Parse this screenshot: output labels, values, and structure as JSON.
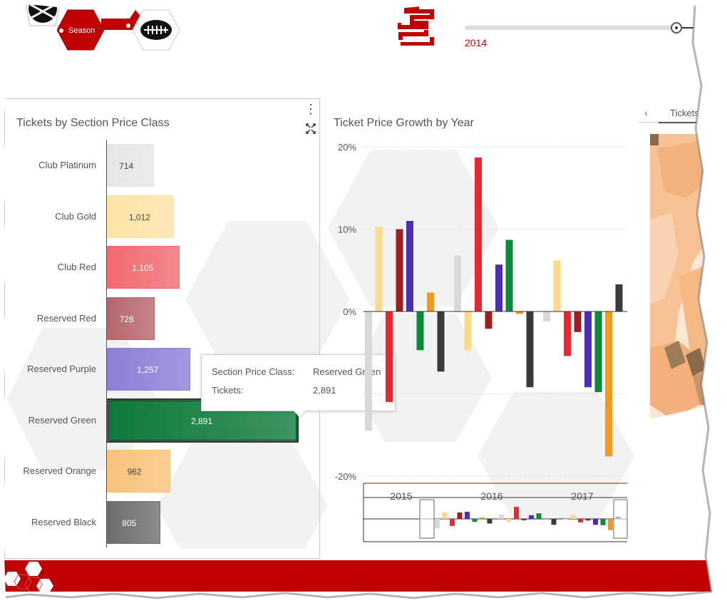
{
  "header": {
    "season_label": "Season",
    "year_slider": {
      "selected_label": "2014"
    }
  },
  "left_panel": {
    "title": "Tickets by Section Price Class",
    "menu_icon": "vertical-ellipsis-icon",
    "expand_icon": "expand-icon"
  },
  "chart_data": [
    {
      "type": "bar",
      "orientation": "horizontal",
      "title": "Tickets by Section Price Class",
      "categories": [
        "Club Platinum",
        "Club Gold",
        "Club Red",
        "Reserved Red",
        "Reserved Purple",
        "Reserved Green",
        "Reserved Orange",
        "Reserved Black"
      ],
      "values": [
        714,
        1012,
        1105,
        728,
        1257,
        2891,
        962,
        805
      ],
      "labels": [
        "714",
        "1,012",
        "1,105",
        "728",
        "1,257",
        "2,891",
        "962",
        "805"
      ],
      "colors": [
        "#e6e6e6",
        "#ffe3a6",
        "#f06a70",
        "#b6666c",
        "#8b7fd6",
        "#0e7a3a",
        "#f8c27a",
        "#6e6e6e"
      ],
      "selected": "Reserved Green"
    },
    {
      "type": "bar",
      "title": "Ticket Price Growth by Year",
      "categories": [
        "2015",
        "2016",
        "2017"
      ],
      "ytick_labels": [
        "20%",
        "10%",
        "0%",
        "-20%"
      ],
      "ylim": [
        -20,
        20
      ],
      "series": [
        {
          "color": "#d9d9d9",
          "values": [
            -14.5,
            6.8,
            -1.2
          ]
        },
        {
          "color": "#ffd98a",
          "values": [
            10.3,
            -4.7,
            6.2
          ]
        },
        {
          "color": "#e8272f",
          "values": [
            -11,
            18.7,
            -5.4
          ]
        },
        {
          "color": "#9c1f24",
          "values": [
            10,
            -2.1,
            -2.5
          ]
        },
        {
          "color": "#4b2fb0",
          "values": [
            11,
            5.7,
            -9.2
          ]
        },
        {
          "color": "#0c8a3a",
          "values": [
            -4.7,
            8.7,
            -9.8
          ]
        },
        {
          "color": "#f39a1e",
          "values": [
            2.3,
            -0.3,
            -17.6
          ]
        },
        {
          "color": "#3a3a3a",
          "values": [
            -7.3,
            -9.2,
            3.3
          ]
        }
      ]
    }
  ],
  "tooltip": {
    "row1_label": "Section Price Class:",
    "row1_value": "Reserved Green",
    "row2_label": "Tickets:",
    "row2_value": "2,891"
  },
  "right_panel": {
    "back_icon": "chevron-left-icon",
    "tab_label": "Tickets"
  }
}
